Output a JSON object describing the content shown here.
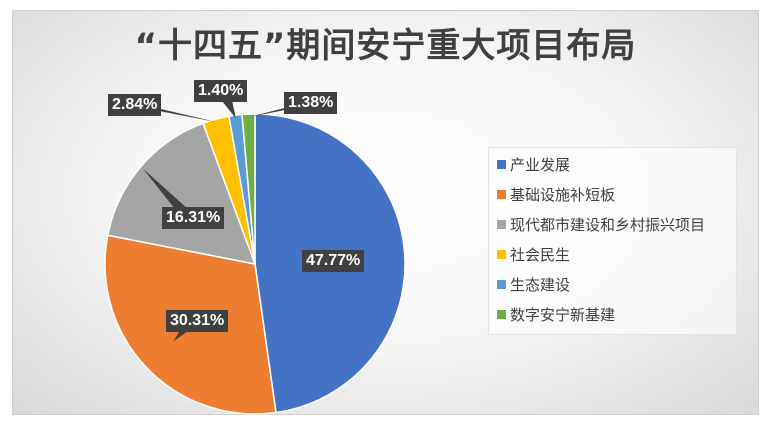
{
  "chart_data": {
    "type": "pie",
    "title": "“十四五”期间安宁重大项目布局",
    "categories": [
      "产业发展",
      "基础设施补短板",
      "现代都市建设和乡村振兴项目",
      "社会民生",
      "生态建设",
      "数字安宁新基建"
    ],
    "values": [
      47.77,
      30.31,
      16.31,
      2.84,
      1.4,
      1.38
    ],
    "value_labels": [
      "47.77%",
      "30.31%",
      "16.31%",
      "2.84%",
      "1.40%",
      "1.38%"
    ],
    "colors": [
      "#4472c4",
      "#ed7d31",
      "#a5a5a5",
      "#ffc000",
      "#5b9bd5",
      "#70ad47"
    ],
    "legend_position": "right",
    "start_angle": "12 o'clock, clockwise"
  }
}
